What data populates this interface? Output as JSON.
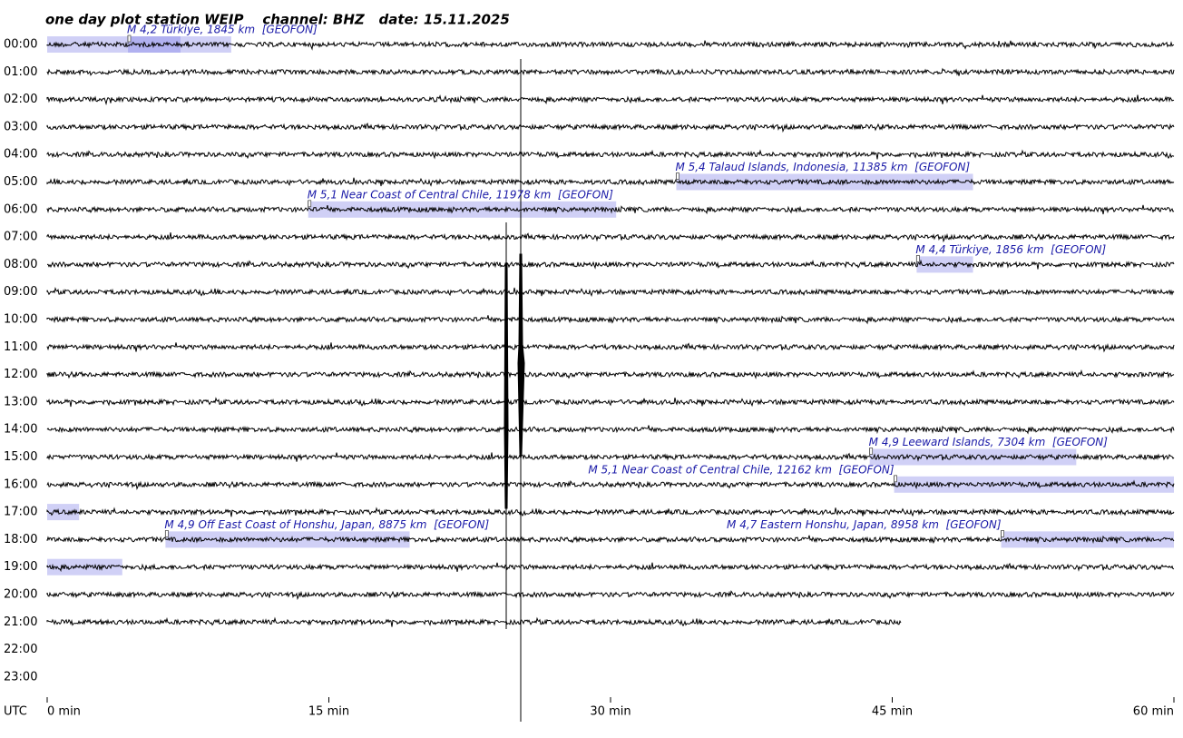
{
  "chart_data": {
    "type": "helicorder",
    "title": "one day plot station WEIP    channel: BHZ   date: 15.11.2025",
    "row_axis_label": "UTC",
    "categories": [
      "00:00",
      "01:00",
      "02:00",
      "03:00",
      "04:00",
      "05:00",
      "06:00",
      "07:00",
      "08:00",
      "09:00",
      "10:00",
      "11:00",
      "12:00",
      "13:00",
      "14:00",
      "15:00",
      "16:00",
      "17:00",
      "18:00",
      "19:00",
      "20:00",
      "21:00",
      "22:00",
      "23:00"
    ],
    "xlim": [
      0,
      60
    ],
    "xticks": [
      {
        "value": 0,
        "label": "0 min"
      },
      {
        "value": 15,
        "label": "15 min"
      },
      {
        "value": 30,
        "label": "30 min"
      },
      {
        "value": 45,
        "label": "45 min"
      },
      {
        "value": 60,
        "label": "60 min"
      }
    ],
    "last_sample": {
      "row": 21,
      "minute": 45.5
    },
    "trace_color": "#000000",
    "highlight_color": "#7878e6",
    "annotations": [
      {
        "row": 0,
        "minute": 4.3,
        "side": "right",
        "label": "M 4,2 Türkiye, 1845 km  [GEOFON]"
      },
      {
        "row": 5,
        "minute": 33.5,
        "side": "right",
        "label": "M 5,4 Talaud Islands, Indonesia, 11385 km  [GEOFON]"
      },
      {
        "row": 6,
        "minute": 13.9,
        "side": "right",
        "label": "M 5,1 Near Coast of Central Chile, 11978 km  [GEOFON]"
      },
      {
        "row": 8,
        "minute": 46.3,
        "side": "right",
        "label": "M 4,4 Türkiye, 1856 km  [GEOFON]"
      },
      {
        "row": 15,
        "minute": 43.8,
        "side": "right",
        "label": "M 4,9 Leeward Islands, 7304 km  [GEOFON]"
      },
      {
        "row": 16,
        "minute": 45.1,
        "side": "left",
        "label": "M 5,1 Near Coast of Central Chile, 12162 km  [GEOFON]"
      },
      {
        "row": 18,
        "minute": 6.3,
        "side": "right",
        "label": "M 4,9 Off East Coast of Honshu, Japan, 8875 km  [GEOFON]"
      },
      {
        "row": 18,
        "minute": 50.8,
        "side": "left",
        "label": "M 4,7 Eastern Honshu, Japan, 8958 km  [GEOFON]"
      }
    ],
    "highlights": [
      {
        "row": 0,
        "start": 0,
        "end": 9.8
      },
      {
        "row": 0,
        "start": 4.3,
        "end": 7.1
      },
      {
        "row": 5,
        "start": 33.5,
        "end": 49.3
      },
      {
        "row": 6,
        "start": 13.9,
        "end": 30.3
      },
      {
        "row": 8,
        "start": 46.3,
        "end": 49.3
      },
      {
        "row": 15,
        "start": 43.8,
        "end": 54.8
      },
      {
        "row": 16,
        "start": 45.1,
        "end": 60
      },
      {
        "row": 17,
        "start": 0,
        "end": 1.7
      },
      {
        "row": 18,
        "start": 6.3,
        "end": 19.3
      },
      {
        "row": 18,
        "start": 50.8,
        "end": 60
      },
      {
        "row": 19,
        "start": 0,
        "end": 4
      }
    ]
  }
}
